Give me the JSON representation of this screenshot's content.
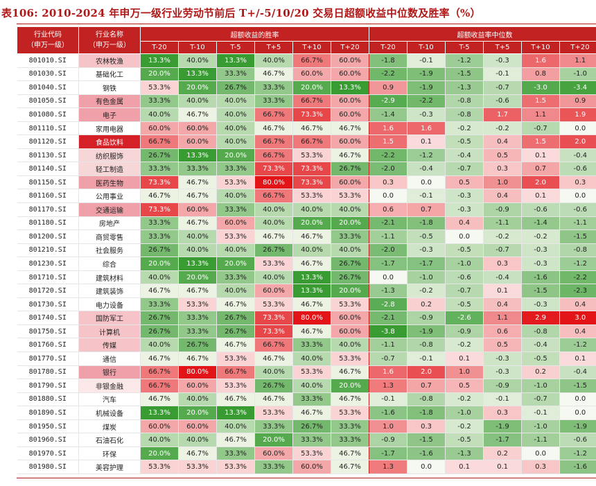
{
  "title": "表106:  2010-2024 年申万一级行业劳动节前后 T+/-5/10/20 交易日超额收益中位数及胜率（%）",
  "headers": {
    "code": "行业代码\n（申万一级）",
    "name": "行业名称\n（申万一级）",
    "win_group": "超额收益的胜率",
    "med_group": "超额收益率中位数",
    "periods": [
      "T-20",
      "T-10",
      "T-5",
      "T+5",
      "T+10",
      "T+20"
    ]
  },
  "rows": [
    {
      "code": "801010.SI",
      "name": "农林牧渔",
      "win": [
        "13.3%",
        "40.0%",
        "13.3%",
        "40.0%",
        "66.7%",
        "60.0%"
      ],
      "med": [
        "-1.8",
        "-0.1",
        "-1.2",
        "-0.3",
        "1.6",
        "1.1"
      ]
    },
    {
      "code": "801030.SI",
      "name": "基础化工",
      "win": [
        "20.0%",
        "13.3%",
        "33.3%",
        "46.7%",
        "60.0%",
        "60.0%"
      ],
      "med": [
        "-2.2",
        "-1.9",
        "-1.5",
        "-0.1",
        "0.8",
        "-1.0"
      ]
    },
    {
      "code": "801040.SI",
      "name": "钢铁",
      "win": [
        "53.3%",
        "20.0%",
        "26.7%",
        "33.3%",
        "20.0%",
        "13.3%"
      ],
      "med": [
        "0.9",
        "-1.9",
        "-1.3",
        "-0.7",
        "-3.0",
        "-3.4"
      ]
    },
    {
      "code": "801050.SI",
      "name": "有色金属",
      "win": [
        "33.3%",
        "40.0%",
        "40.0%",
        "33.3%",
        "66.7%",
        "60.0%"
      ],
      "med": [
        "-2.9",
        "-2.2",
        "-0.8",
        "-0.6",
        "1.5",
        "0.9"
      ]
    },
    {
      "code": "801080.SI",
      "name": "电子",
      "win": [
        "40.0%",
        "46.7%",
        "40.0%",
        "66.7%",
        "73.3%",
        "60.0%"
      ],
      "med": [
        "-1.4",
        "-0.3",
        "-0.8",
        "1.7",
        "1.1",
        "1.9"
      ]
    },
    {
      "code": "801110.SI",
      "name": "家用电器",
      "win": [
        "60.0%",
        "60.0%",
        "40.0%",
        "46.7%",
        "46.7%",
        "46.7%"
      ],
      "med": [
        "1.6",
        "1.6",
        "-0.2",
        "-0.2",
        "-0.7",
        "0.0"
      ]
    },
    {
      "code": "801120.SI",
      "name": "食品饮料",
      "win": [
        "66.7%",
        "60.0%",
        "40.0%",
        "66.7%",
        "66.7%",
        "60.0%"
      ],
      "med": [
        "1.5",
        "0.1",
        "-0.5",
        "0.4",
        "1.5",
        "2.0"
      ]
    },
    {
      "code": "801130.SI",
      "name": "纺织服饰",
      "win": [
        "26.7%",
        "13.3%",
        "20.0%",
        "66.7%",
        "53.3%",
        "46.7%"
      ],
      "med": [
        "-2.2",
        "-1.2",
        "-0.4",
        "0.5",
        "0.1",
        "-0.4"
      ]
    },
    {
      "code": "801140.SI",
      "name": "轻工制造",
      "win": [
        "33.3%",
        "33.3%",
        "33.3%",
        "73.3%",
        "73.3%",
        "26.7%"
      ],
      "med": [
        "-2.0",
        "-0.4",
        "-0.7",
        "0.3",
        "0.7",
        "-0.6"
      ]
    },
    {
      "code": "801150.SI",
      "name": "医药生物",
      "win": [
        "73.3%",
        "46.7%",
        "53.3%",
        "80.0%",
        "73.3%",
        "60.0%"
      ],
      "med": [
        "0.3",
        "0.0",
        "0.5",
        "1.0",
        "2.0",
        "0.3"
      ]
    },
    {
      "code": "801160.SI",
      "name": "公用事业",
      "win": [
        "46.7%",
        "46.7%",
        "40.0%",
        "66.7%",
        "53.3%",
        "53.3%"
      ],
      "med": [
        "0.0",
        "-0.1",
        "-0.3",
        "0.4",
        "0.1",
        "0.0"
      ]
    },
    {
      "code": "801170.SI",
      "name": "交通运输",
      "win": [
        "73.3%",
        "60.0%",
        "33.3%",
        "40.0%",
        "40.0%",
        "40.0%"
      ],
      "med": [
        "0.6",
        "0.7",
        "-0.3",
        "-0.9",
        "-0.6",
        "-0.6"
      ]
    },
    {
      "code": "801180.SI",
      "name": "房地产",
      "win": [
        "33.3%",
        "46.7%",
        "60.0%",
        "40.0%",
        "20.0%",
        "20.0%"
      ],
      "med": [
        "-2.1",
        "-1.8",
        "0.4",
        "-1.1",
        "-1.4",
        "-1.1"
      ]
    },
    {
      "code": "801200.SI",
      "name": "商贸零售",
      "win": [
        "33.3%",
        "40.0%",
        "53.3%",
        "46.7%",
        "46.7%",
        "33.3%"
      ],
      "med": [
        "-1.1",
        "-0.5",
        "0.0",
        "-0.2",
        "-0.2",
        "-1.5"
      ]
    },
    {
      "code": "801210.SI",
      "name": "社会服务",
      "win": [
        "26.7%",
        "40.0%",
        "40.0%",
        "26.7%",
        "40.0%",
        "40.0%"
      ],
      "med": [
        "-2.0",
        "-0.3",
        "-0.5",
        "-0.7",
        "-0.3",
        "-0.8"
      ]
    },
    {
      "code": "801230.SI",
      "name": "综合",
      "win": [
        "20.0%",
        "13.3%",
        "20.0%",
        "53.3%",
        "46.7%",
        "26.7%"
      ],
      "med": [
        "-1.7",
        "-1.7",
        "-1.0",
        "0.3",
        "-0.3",
        "-1.2"
      ]
    },
    {
      "code": "801710.SI",
      "name": "建筑材料",
      "win": [
        "40.0%",
        "20.0%",
        "33.3%",
        "40.0%",
        "13.3%",
        "26.7%"
      ],
      "med": [
        "0.0",
        "-1.0",
        "-0.6",
        "-0.4",
        "-1.6",
        "-2.2"
      ]
    },
    {
      "code": "801720.SI",
      "name": "建筑装饰",
      "win": [
        "46.7%",
        "46.7%",
        "40.0%",
        "60.0%",
        "13.3%",
        "20.0%"
      ],
      "med": [
        "-1.3",
        "-0.2",
        "-0.7",
        "0.1",
        "-1.5",
        "-2.3"
      ]
    },
    {
      "code": "801730.SI",
      "name": "电力设备",
      "win": [
        "33.3%",
        "53.3%",
        "46.7%",
        "53.3%",
        "46.7%",
        "53.3%"
      ],
      "med": [
        "-2.8",
        "0.2",
        "-0.5",
        "0.4",
        "-0.3",
        "0.4"
      ]
    },
    {
      "code": "801740.SI",
      "name": "国防军工",
      "win": [
        "26.7%",
        "33.3%",
        "26.7%",
        "73.3%",
        "80.0%",
        "60.0%"
      ],
      "med": [
        "-2.1",
        "-0.9",
        "-2.6",
        "1.1",
        "2.9",
        "3.0"
      ]
    },
    {
      "code": "801750.SI",
      "name": "计算机",
      "win": [
        "26.7%",
        "33.3%",
        "26.7%",
        "73.3%",
        "46.7%",
        "60.0%"
      ],
      "med": [
        "-3.8",
        "-1.9",
        "-0.9",
        "0.6",
        "-0.8",
        "0.4"
      ]
    },
    {
      "code": "801760.SI",
      "name": "传媒",
      "win": [
        "40.0%",
        "26.7%",
        "46.7%",
        "66.7%",
        "33.3%",
        "40.0%"
      ],
      "med": [
        "-1.1",
        "-0.8",
        "-0.2",
        "0.5",
        "-0.4",
        "-1.2"
      ]
    },
    {
      "code": "801770.SI",
      "name": "通信",
      "win": [
        "46.7%",
        "46.7%",
        "53.3%",
        "46.7%",
        "40.0%",
        "53.3%"
      ],
      "med": [
        "-0.7",
        "-0.1",
        "0.1",
        "-0.3",
        "-0.5",
        "0.1"
      ]
    },
    {
      "code": "801780.SI",
      "name": "银行",
      "win": [
        "66.7%",
        "80.0%",
        "66.7%",
        "40.0%",
        "53.3%",
        "46.7%"
      ],
      "med": [
        "1.6",
        "2.0",
        "1.0",
        "-0.3",
        "0.2",
        "-0.4"
      ]
    },
    {
      "code": "801790.SI",
      "name": "非银金融",
      "win": [
        "66.7%",
        "60.0%",
        "53.3%",
        "26.7%",
        "40.0%",
        "20.0%"
      ],
      "med": [
        "1.3",
        "0.7",
        "0.5",
        "-0.9",
        "-1.0",
        "-1.5"
      ]
    },
    {
      "code": "801880.SI",
      "name": "汽车",
      "win": [
        "46.7%",
        "40.0%",
        "46.7%",
        "46.7%",
        "33.3%",
        "46.7%"
      ],
      "med": [
        "-0.1",
        "-0.8",
        "-0.2",
        "-0.1",
        "-0.7",
        "0.0"
      ]
    },
    {
      "code": "801890.SI",
      "name": "机械设备",
      "win": [
        "13.3%",
        "20.0%",
        "13.3%",
        "53.3%",
        "46.7%",
        "53.3%"
      ],
      "med": [
        "-1.6",
        "-1.8",
        "-1.0",
        "0.3",
        "-0.1",
        "0.0"
      ]
    },
    {
      "code": "801950.SI",
      "name": "煤炭",
      "win": [
        "60.0%",
        "60.0%",
        "40.0%",
        "33.3%",
        "26.7%",
        "33.3%"
      ],
      "med": [
        "1.0",
        "0.3",
        "-0.2",
        "-1.9",
        "-1.0",
        "-1.9"
      ]
    },
    {
      "code": "801960.SI",
      "name": "石油石化",
      "win": [
        "40.0%",
        "40.0%",
        "46.7%",
        "20.0%",
        "33.3%",
        "33.3%"
      ],
      "med": [
        "-0.9",
        "-1.5",
        "-0.5",
        "-1.7",
        "-1.1",
        "-0.6"
      ]
    },
    {
      "code": "801970.SI",
      "name": "环保",
      "win": [
        "20.0%",
        "46.7%",
        "33.3%",
        "60.0%",
        "53.3%",
        "46.7%"
      ],
      "med": [
        "-1.7",
        "-1.6",
        "-1.3",
        "0.2",
        "0.0",
        "-1.2"
      ]
    },
    {
      "code": "801980.SI",
      "name": "美容护理",
      "win": [
        "53.3%",
        "53.3%",
        "53.3%",
        "33.3%",
        "60.0%",
        "46.7%"
      ],
      "med": [
        "1.3",
        "0.0",
        "0.1",
        "0.1",
        "0.3",
        "-1.6"
      ]
    }
  ]
}
